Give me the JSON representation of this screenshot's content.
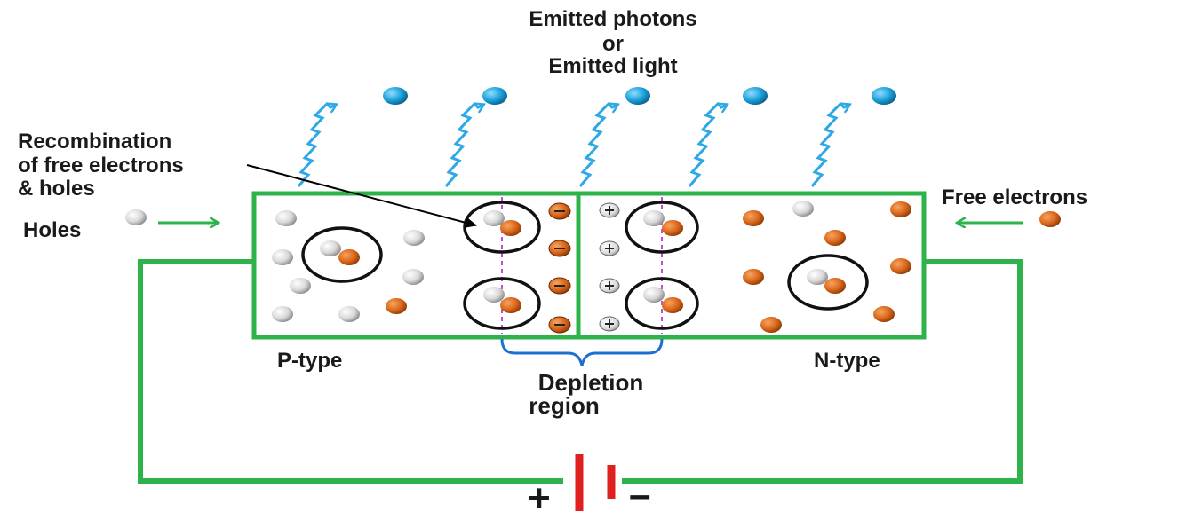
{
  "title": {
    "line1": "Emitted photons",
    "line2": "or",
    "line3": "Emitted light"
  },
  "labels": {
    "recombination_line1": "Recombination",
    "recombination_line2": "of free electrons",
    "recombination_line3": "& holes",
    "holes": "Holes",
    "free_electrons": "Free electrons",
    "p_type": "P-type",
    "n_type": "N-type",
    "depletion_line1": "Depletion",
    "depletion_line2": "region",
    "battery_plus": "+",
    "battery_minus": "–"
  },
  "colors": {
    "circuit": "#2db34a",
    "photon": "#1a9fd8",
    "electron": "#d9661a",
    "hole": "#d8d8d8",
    "battery": "#e01f1f",
    "depletion_boundary": "#c14fd6",
    "depletion_brace": "#1f6fd0",
    "arrow": "#2db34a"
  },
  "icons": {
    "photon": "photon-particle-icon",
    "hole": "hole-particle-icon",
    "electron": "free-electron-icon",
    "negative_ion": "negative-ion-icon",
    "positive_ion": "positive-ion-icon"
  }
}
